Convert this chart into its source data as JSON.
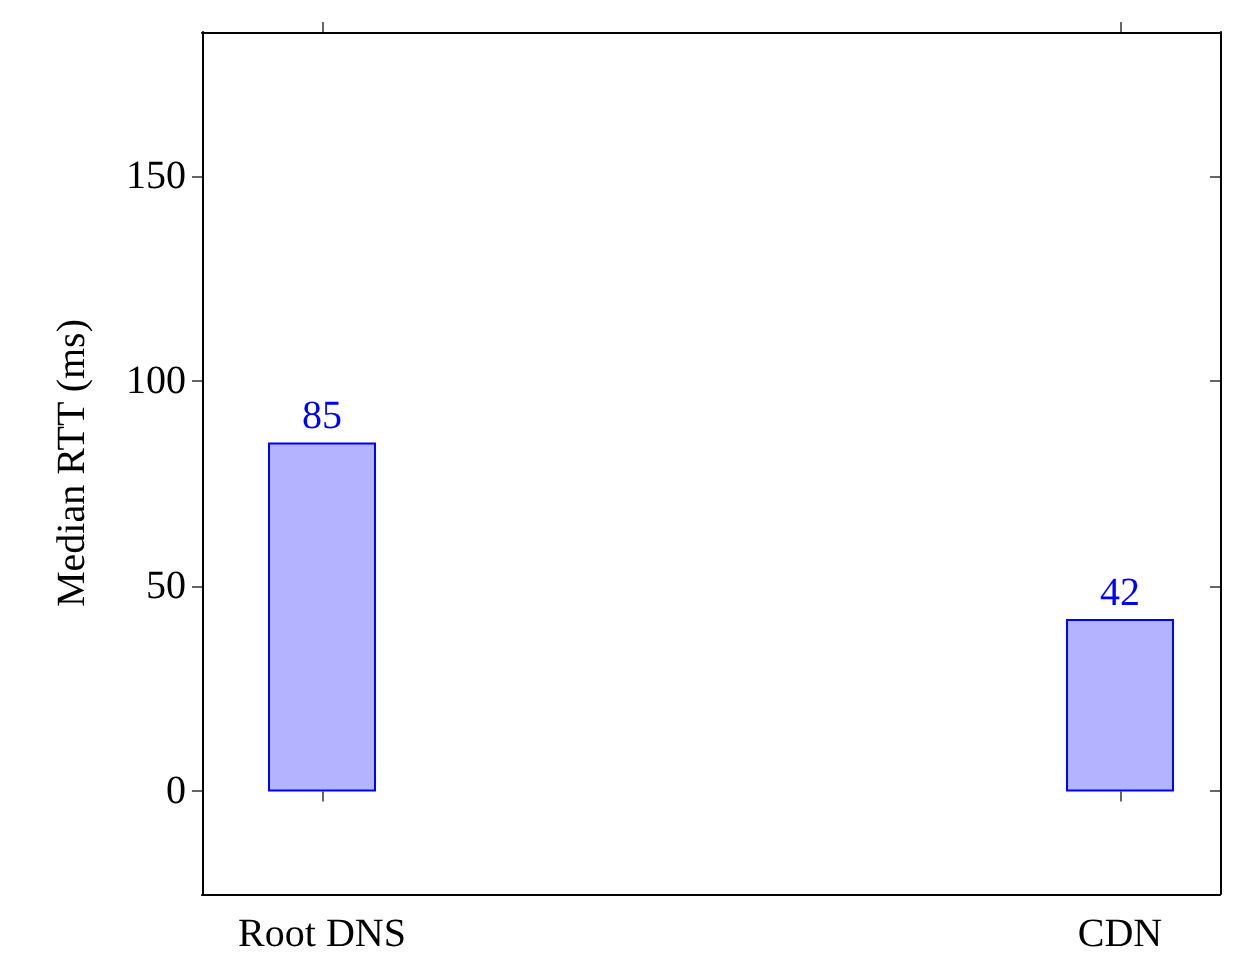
{
  "chart_data": {
    "type": "bar",
    "ylabel": "Median RTT (ms)",
    "categories": [
      "Root DNS",
      "CDN"
    ],
    "values": [
      85,
      42
    ],
    "color": "#b3b3ff",
    "ylim": [
      -25,
      185
    ],
    "yticks": [
      0,
      50,
      100,
      150
    ],
    "data_labels": true
  }
}
